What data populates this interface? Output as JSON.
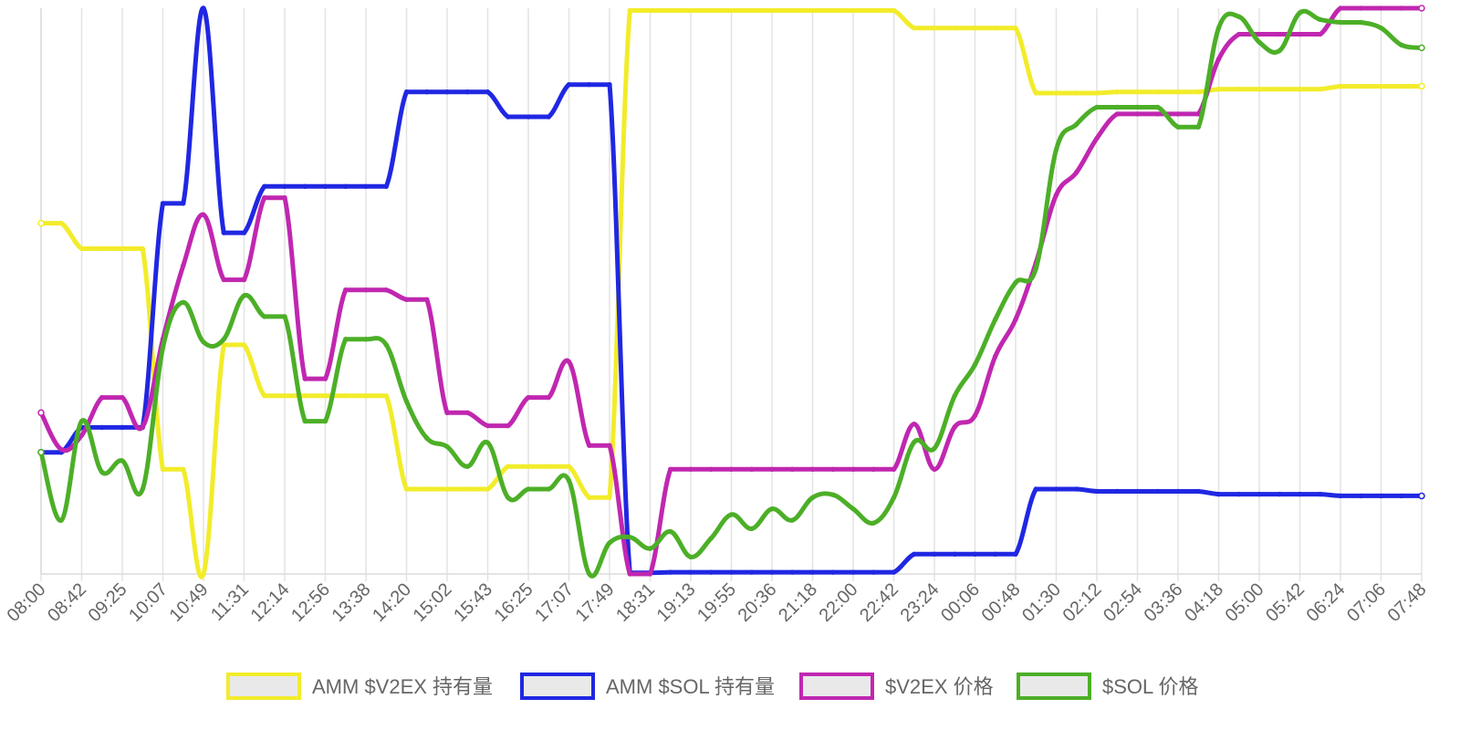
{
  "chart_data": {
    "type": "line",
    "x": [
      "08:00",
      "08:21",
      "08:42",
      "09:04",
      "09:25",
      "09:46",
      "10:07",
      "10:28",
      "10:49",
      "11:10",
      "11:31",
      "11:52",
      "12:14",
      "12:35",
      "12:56",
      "13:17",
      "13:38",
      "13:59",
      "14:20",
      "14:41",
      "15:02",
      "15:22",
      "15:43",
      "16:04",
      "16:25",
      "16:46",
      "17:07",
      "17:28",
      "17:49",
      "18:10",
      "18:31",
      "18:52",
      "19:13",
      "19:34",
      "19:55",
      "20:15",
      "20:36",
      "20:57",
      "21:18",
      "21:39",
      "22:00",
      "22:21",
      "22:42",
      "23:03",
      "23:24",
      "23:45",
      "00:06",
      "00:27",
      "00:48",
      "01:09",
      "01:30",
      "01:51",
      "02:12",
      "02:33",
      "02:54",
      "03:15",
      "03:36",
      "03:57",
      "04:18",
      "04:39",
      "05:00",
      "05:21",
      "05:42",
      "06:03",
      "06:24",
      "06:45",
      "07:06",
      "07:27",
      "07:48"
    ],
    "tick_labels": [
      "08:00",
      "08:42",
      "09:25",
      "10:07",
      "10:49",
      "11:31",
      "12:14",
      "12:56",
      "13:38",
      "14:20",
      "15:02",
      "15:43",
      "16:25",
      "17:07",
      "17:49",
      "18:31",
      "19:13",
      "19:55",
      "20:36",
      "21:18",
      "22:00",
      "22:42",
      "23:24",
      "00:06",
      "00:48",
      "01:30",
      "02:12",
      "02:54",
      "03:36",
      "04:18",
      "05:00",
      "05:42",
      "06:24",
      "07:06",
      "07:48"
    ],
    "ylim": [
      0,
      100
    ],
    "grid": "vertical",
    "legend_position": "bottom",
    "series": [
      {
        "name": "AMM $V2EX 持有量",
        "color": "#f2ec2a",
        "values": [
          62,
          62,
          57.5,
          57.5,
          57.5,
          57.5,
          18.5,
          18.5,
          0,
          40.5,
          40.5,
          31.5,
          31.5,
          31.5,
          31.5,
          31.5,
          31.5,
          31.5,
          15,
          15,
          15,
          15,
          15,
          19,
          19,
          19,
          19,
          13.5,
          13.5,
          99.6,
          99.6,
          99.6,
          99.6,
          99.6,
          99.6,
          99.6,
          99.6,
          99.6,
          99.6,
          99.6,
          99.6,
          99.6,
          99.6,
          96.5,
          96.5,
          96.5,
          96.5,
          96.5,
          96.5,
          85,
          85,
          85,
          85,
          85.2,
          85.2,
          85.2,
          85.2,
          85.2,
          85.7,
          85.7,
          85.7,
          85.7,
          85.7,
          85.7,
          86.2,
          86.2,
          86.2,
          86.2,
          86.2
        ]
      },
      {
        "name": "AMM $SOL 持有量",
        "color": "#2027e2",
        "values": [
          21.5,
          21.5,
          25.9,
          25.9,
          25.9,
          25.9,
          65.5,
          65.5,
          100,
          60.3,
          60.3,
          68.5,
          68.5,
          68.5,
          68.5,
          68.5,
          68.5,
          68.5,
          85.2,
          85.2,
          85.2,
          85.2,
          85.2,
          80.8,
          80.8,
          80.8,
          86.5,
          86.5,
          86.5,
          0.2,
          0.2,
          0.3,
          0.3,
          0.3,
          0.3,
          0.3,
          0.3,
          0.3,
          0.3,
          0.3,
          0.3,
          0.3,
          0.3,
          3.5,
          3.5,
          3.5,
          3.5,
          3.5,
          3.5,
          15,
          15,
          15,
          14.6,
          14.6,
          14.6,
          14.6,
          14.6,
          14.6,
          14.1,
          14.1,
          14.1,
          14.1,
          14.1,
          14.1,
          13.8,
          13.8,
          13.8,
          13.8,
          13.8
        ]
      },
      {
        "name": "$V2EX 价格",
        "color": "#c027b0",
        "values": [
          28.5,
          22,
          24.5,
          31.2,
          31.2,
          26,
          41.5,
          54.5,
          63.5,
          52,
          52,
          66.5,
          66.5,
          34.5,
          34.5,
          50.2,
          50.2,
          50.2,
          48.5,
          48.5,
          28.5,
          28.5,
          26.2,
          26.2,
          31.2,
          31.2,
          37.5,
          22.7,
          22.7,
          0,
          0,
          18.5,
          18.5,
          18.5,
          18.5,
          18.5,
          18.5,
          18.5,
          18.5,
          18.5,
          18.5,
          18.5,
          18.5,
          26.5,
          18.5,
          26,
          28,
          38.5,
          45,
          55,
          67,
          71,
          77,
          81.3,
          81.3,
          81.3,
          81.3,
          81.3,
          91,
          95.4,
          95.4,
          95.4,
          95.4,
          95.4,
          100,
          100,
          100,
          100,
          100
        ]
      },
      {
        "name": "$SOL 价格",
        "color": "#4caf27",
        "values": [
          21.5,
          9.5,
          27,
          18,
          20,
          15,
          40,
          48,
          41,
          41.5,
          49.2,
          45.5,
          45.5,
          27,
          27,
          41.5,
          41.5,
          40.5,
          30.5,
          24,
          22.5,
          19,
          23.2,
          13.5,
          15,
          15,
          16.5,
          0,
          5.5,
          6.5,
          4.5,
          7.5,
          3,
          6.3,
          10.5,
          8,
          11.5,
          9.5,
          13.5,
          14,
          11.5,
          9,
          13.5,
          23.3,
          22.2,
          31.5,
          37,
          45,
          51.5,
          54,
          75,
          79.5,
          82.5,
          82.5,
          82.5,
          82.5,
          79,
          79,
          96.5,
          98.5,
          94,
          92.5,
          99.2,
          98,
          97.5,
          97.5,
          96.5,
          93.5,
          93
        ]
      }
    ]
  }
}
